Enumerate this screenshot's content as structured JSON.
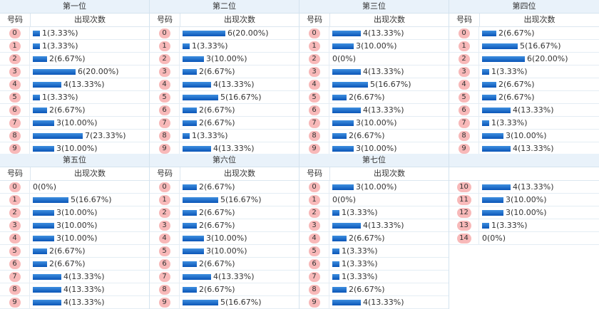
{
  "headers": {
    "number": "号码",
    "count": "出现次数"
  },
  "max_percent": 23.33,
  "positions": [
    {
      "title": "第一位",
      "rows": [
        {
          "num": "0",
          "count": 1,
          "pct": "3.33%"
        },
        {
          "num": "1",
          "count": 1,
          "pct": "3.33%"
        },
        {
          "num": "2",
          "count": 2,
          "pct": "6.67%"
        },
        {
          "num": "3",
          "count": 6,
          "pct": "20.00%"
        },
        {
          "num": "4",
          "count": 4,
          "pct": "13.33%"
        },
        {
          "num": "5",
          "count": 1,
          "pct": "3.33%"
        },
        {
          "num": "6",
          "count": 2,
          "pct": "6.67%"
        },
        {
          "num": "7",
          "count": 3,
          "pct": "10.00%"
        },
        {
          "num": "8",
          "count": 7,
          "pct": "23.33%"
        },
        {
          "num": "9",
          "count": 3,
          "pct": "10.00%"
        }
      ]
    },
    {
      "title": "第二位",
      "rows": [
        {
          "num": "0",
          "count": 6,
          "pct": "20.00%"
        },
        {
          "num": "1",
          "count": 1,
          "pct": "3.33%"
        },
        {
          "num": "2",
          "count": 3,
          "pct": "10.00%"
        },
        {
          "num": "3",
          "count": 2,
          "pct": "6.67%"
        },
        {
          "num": "4",
          "count": 4,
          "pct": "13.33%"
        },
        {
          "num": "5",
          "count": 5,
          "pct": "16.67%"
        },
        {
          "num": "6",
          "count": 2,
          "pct": "6.67%"
        },
        {
          "num": "7",
          "count": 2,
          "pct": "6.67%"
        },
        {
          "num": "8",
          "count": 1,
          "pct": "3.33%"
        },
        {
          "num": "9",
          "count": 4,
          "pct": "13.33%"
        }
      ]
    },
    {
      "title": "第三位",
      "rows": [
        {
          "num": "0",
          "count": 4,
          "pct": "13.33%"
        },
        {
          "num": "1",
          "count": 3,
          "pct": "10.00%"
        },
        {
          "num": "2",
          "count": 0,
          "pct": "0%"
        },
        {
          "num": "3",
          "count": 4,
          "pct": "13.33%"
        },
        {
          "num": "4",
          "count": 5,
          "pct": "16.67%"
        },
        {
          "num": "5",
          "count": 2,
          "pct": "6.67%"
        },
        {
          "num": "6",
          "count": 4,
          "pct": "13.33%"
        },
        {
          "num": "7",
          "count": 3,
          "pct": "10.00%"
        },
        {
          "num": "8",
          "count": 2,
          "pct": "6.67%"
        },
        {
          "num": "9",
          "count": 3,
          "pct": "10.00%"
        }
      ]
    },
    {
      "title": "第四位",
      "rows": [
        {
          "num": "0",
          "count": 2,
          "pct": "6.67%"
        },
        {
          "num": "1",
          "count": 5,
          "pct": "16.67%"
        },
        {
          "num": "2",
          "count": 6,
          "pct": "20.00%"
        },
        {
          "num": "3",
          "count": 1,
          "pct": "3.33%"
        },
        {
          "num": "4",
          "count": 2,
          "pct": "6.67%"
        },
        {
          "num": "5",
          "count": 2,
          "pct": "6.67%"
        },
        {
          "num": "6",
          "count": 4,
          "pct": "13.33%"
        },
        {
          "num": "7",
          "count": 1,
          "pct": "3.33%"
        },
        {
          "num": "8",
          "count": 3,
          "pct": "10.00%"
        },
        {
          "num": "9",
          "count": 4,
          "pct": "13.33%"
        }
      ]
    },
    {
      "title": "第五位",
      "rows": [
        {
          "num": "0",
          "count": 0,
          "pct": "0%"
        },
        {
          "num": "1",
          "count": 5,
          "pct": "16.67%"
        },
        {
          "num": "2",
          "count": 3,
          "pct": "10.00%"
        },
        {
          "num": "3",
          "count": 3,
          "pct": "10.00%"
        },
        {
          "num": "4",
          "count": 3,
          "pct": "10.00%"
        },
        {
          "num": "5",
          "count": 2,
          "pct": "6.67%"
        },
        {
          "num": "6",
          "count": 2,
          "pct": "6.67%"
        },
        {
          "num": "7",
          "count": 4,
          "pct": "13.33%"
        },
        {
          "num": "8",
          "count": 4,
          "pct": "13.33%"
        },
        {
          "num": "9",
          "count": 4,
          "pct": "13.33%"
        }
      ]
    },
    {
      "title": "第六位",
      "rows": [
        {
          "num": "0",
          "count": 2,
          "pct": "6.67%"
        },
        {
          "num": "1",
          "count": 5,
          "pct": "16.67%"
        },
        {
          "num": "2",
          "count": 2,
          "pct": "6.67%"
        },
        {
          "num": "3",
          "count": 2,
          "pct": "6.67%"
        },
        {
          "num": "4",
          "count": 3,
          "pct": "10.00%"
        },
        {
          "num": "5",
          "count": 3,
          "pct": "10.00%"
        },
        {
          "num": "6",
          "count": 2,
          "pct": "6.67%"
        },
        {
          "num": "7",
          "count": 4,
          "pct": "13.33%"
        },
        {
          "num": "8",
          "count": 2,
          "pct": "6.67%"
        },
        {
          "num": "9",
          "count": 5,
          "pct": "16.67%"
        }
      ]
    },
    {
      "title": "第七位",
      "rows": [
        {
          "num": "0",
          "count": 3,
          "pct": "10.00%"
        },
        {
          "num": "1",
          "count": 0,
          "pct": "0%"
        },
        {
          "num": "2",
          "count": 1,
          "pct": "3.33%"
        },
        {
          "num": "3",
          "count": 4,
          "pct": "13.33%"
        },
        {
          "num": "4",
          "count": 2,
          "pct": "6.67%"
        },
        {
          "num": "5",
          "count": 1,
          "pct": "3.33%"
        },
        {
          "num": "6",
          "count": 1,
          "pct": "3.33%"
        },
        {
          "num": "7",
          "count": 1,
          "pct": "3.33%"
        },
        {
          "num": "8",
          "count": 2,
          "pct": "6.67%"
        },
        {
          "num": "9",
          "count": 4,
          "pct": "13.33%"
        }
      ]
    },
    {
      "title": "",
      "rows": [
        {
          "num": "10",
          "count": 4,
          "pct": "13.33%"
        },
        {
          "num": "11",
          "count": 3,
          "pct": "10.00%"
        },
        {
          "num": "12",
          "count": 3,
          "pct": "10.00%"
        },
        {
          "num": "13",
          "count": 1,
          "pct": "3.33%"
        },
        {
          "num": "14",
          "count": 0,
          "pct": "0%"
        }
      ]
    }
  ]
}
